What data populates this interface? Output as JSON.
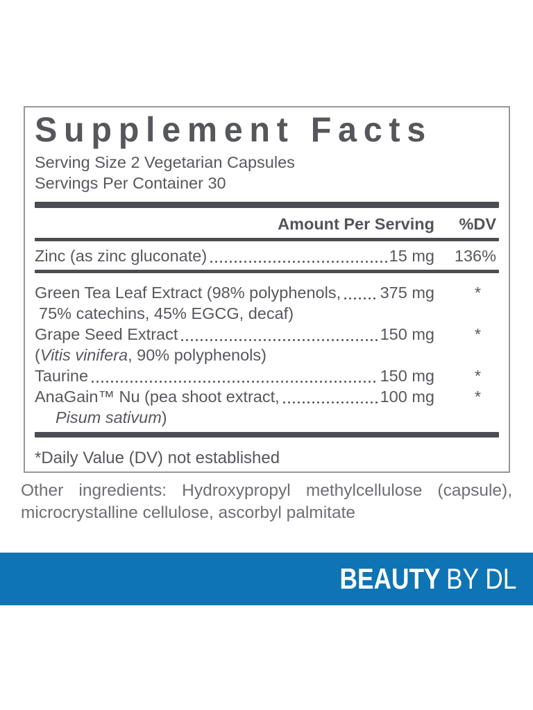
{
  "panel": {
    "title": "Supplement Facts",
    "serving_size": "Serving Size 2 Vegetarian Capsules",
    "servings_per_container": "Servings Per Container 30",
    "columns": {
      "amount": "Amount Per Serving",
      "dv": "%DV"
    },
    "rows": [
      {
        "name": "Zinc (as zinc gluconate)",
        "amount": "15 mg",
        "dv": "136%"
      },
      {
        "name": "Green Tea Leaf Extract (98% polyphenols,",
        "amount": "375 mg",
        "dv": "*",
        "cont_pre": "75% catechins, 45% EGCG, decaf)",
        "cont_italic": "",
        "cont_post": ""
      },
      {
        "name": "Grape Seed Extract",
        "amount": "150 mg",
        "dv": "*",
        "cont_pre": "(",
        "cont_italic": "Vitis vinifera",
        "cont_post": ", 90% polyphenols)"
      },
      {
        "name": "Taurine",
        "amount": "150 mg",
        "dv": "*"
      },
      {
        "name": "AnaGain™ Nu (pea shoot extract,",
        "amount": "100 mg",
        "dv": "*",
        "cont_pre": "",
        "cont_italic": "Pisum sativum",
        "cont_post": ")"
      }
    ],
    "footnote": "*Daily Value (DV) not established"
  },
  "other_ingredients": "Other ingredients: Hydroxypropyl methylcellulose (capsule), microcrystalline cellulose, ascorbyl palmitate",
  "banner": {
    "brand_bold": "BEAUTY",
    "brand_light": "BY DL",
    "background_color": "#0f74b4",
    "text_color": "#ffffff"
  },
  "colors": {
    "panel_text": "#57585c",
    "panel_rules": "#4b4d52",
    "panel_border": "#96979b",
    "other_ingredients_text": "#6e6f73"
  }
}
